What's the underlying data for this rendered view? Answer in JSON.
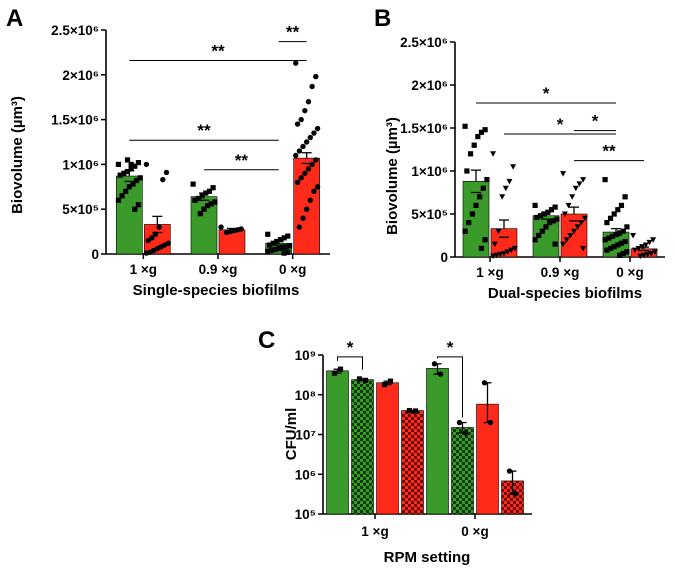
{
  "colors": {
    "green": "#3a9a2a",
    "red": "#ff2a1a",
    "black": "#000000"
  },
  "chart_data": [
    {
      "id": "A",
      "panel_label": "A",
      "type": "bar",
      "title": "",
      "xlabel": "Single-species biofilms",
      "ylabel": "Biovolume (µm³)",
      "ylim": [
        0,
        2500000
      ],
      "ytick_labels": [
        "0",
        "5×10⁵",
        "1×10⁶",
        "1.5×10⁶",
        "2×10⁶",
        "2.5×10⁶"
      ],
      "categories": [
        "1 ×g",
        "0.9 ×g",
        "0 ×g"
      ],
      "series": [
        {
          "name": "green",
          "values": [
            870000,
            640000,
            120000
          ],
          "errors": [
            60000,
            40000,
            20000
          ],
          "marker": "square",
          "points": [
            [
              1000000,
              1020000,
              980000,
              950000,
              1050000,
              900000,
              880000,
              850000,
              820000,
              780000,
              750000,
              700000,
              650000,
              600000,
              550000,
              500000,
              1000000,
              920000
            ],
            [
              780000,
              740000,
              700000,
              680000,
              650000,
              620000,
              600000,
              580000,
              560000,
              540000,
              500000,
              450000
            ],
            [
              220000,
              200000,
              180000,
              160000,
              140000,
              120000,
              100000,
              90000,
              80000,
              70000,
              60000,
              50000,
              40000,
              30000,
              20000,
              10000
            ]
          ]
        },
        {
          "name": "red",
          "values": [
            330000,
            270000,
            1070000
          ],
          "errors": [
            90000,
            15000,
            60000
          ],
          "marker": "circle",
          "points": [
            [
              1000000,
              910000,
              830000,
              300000,
              220000,
              180000,
              150000,
              120000,
              100000,
              80000,
              60000,
              40000,
              20000,
              10000
            ],
            [
              300000,
              280000,
              270000,
              260000,
              250000,
              240000
            ],
            [
              2130000,
              1980000,
              1870000,
              1700000,
              1600000,
              1500000,
              1450000,
              1400000,
              1350000,
              1300000,
              1250000,
              1200000,
              1150000,
              1100000,
              1050000,
              1000000,
              950000,
              900000,
              850000,
              800000,
              750000,
              700000,
              600000,
              500000,
              400000,
              300000
            ]
          ]
        }
      ],
      "significance": [
        {
          "label": "**",
          "from": [
            2,
            0
          ],
          "to": [
            2,
            1
          ],
          "y": 2370000
        },
        {
          "label": "**",
          "from": [
            0,
            0
          ],
          "to": [
            2,
            1
          ],
          "y": 2160000
        },
        {
          "label": "**",
          "from": [
            0,
            0
          ],
          "to": [
            2,
            0
          ],
          "y": 1270000
        },
        {
          "label": "**",
          "from": [
            1,
            0
          ],
          "to": [
            2,
            0
          ],
          "y": 940000
        }
      ]
    },
    {
      "id": "B",
      "panel_label": "B",
      "type": "bar",
      "title": "",
      "xlabel": "Dual-species biofilms",
      "ylabel": "Biovolume (µm³)",
      "ylim": [
        0,
        2500000
      ],
      "ytick_labels": [
        "0",
        "5×10⁵",
        "1×10⁶",
        "1.5×10⁶",
        "2×10⁶",
        "2.5×10⁶"
      ],
      "categories": [
        "1 ×g",
        "0.9 ×g",
        "0 ×g"
      ],
      "series": [
        {
          "name": "green",
          "values": [
            880000,
            480000,
            290000
          ],
          "errors": [
            130000,
            40000,
            40000
          ],
          "marker": "square",
          "points": [
            [
              1520000,
              1480000,
              1450000,
              1400000,
              1300000,
              1200000,
              1000000,
              900000,
              800000,
              700000,
              600000,
              500000,
              400000,
              300000,
              200000,
              100000
            ],
            [
              600000,
              580000,
              550000,
              520000,
              500000,
              480000,
              460000,
              440000,
              420000,
              400000,
              350000,
              300000,
              250000,
              200000,
              150000
            ],
            [
              900000,
              700000,
              600000,
              550000,
              500000,
              450000,
              400000,
              350000,
              300000,
              280000,
              260000,
              240000,
              220000,
              200000,
              180000,
              160000,
              140000,
              120000,
              100000,
              80000,
              60000,
              40000,
              20000
            ]
          ]
        },
        {
          "name": "red",
          "values": [
            330000,
            500000,
            95000
          ],
          "errors": [
            100000,
            80000,
            20000
          ],
          "marker": "triangle",
          "points": [
            [
              1200000,
              1050000,
              880000,
              800000,
              700000,
              300000,
              150000,
              100000,
              80000,
              60000,
              40000,
              30000,
              20000,
              10000
            ],
            [
              970000,
              900000,
              850000,
              800000,
              700000,
              600000,
              500000,
              450000,
              400000,
              350000,
              300000,
              250000,
              200000,
              150000,
              100000
            ],
            [
              250000,
              200000,
              170000,
              140000,
              120000,
              100000,
              80000,
              60000,
              40000,
              30000,
              20000,
              10000
            ]
          ]
        }
      ],
      "significance": [
        {
          "label": "*",
          "from": [
            0,
            0
          ],
          "to": [
            2,
            0
          ],
          "y": 1790000
        },
        {
          "label": "*",
          "from": [
            0,
            1
          ],
          "to": [
            2,
            0
          ],
          "y": 1430000
        },
        {
          "label": "*",
          "from": [
            1,
            1
          ],
          "to": [
            2,
            0
          ],
          "y": 1470000
        },
        {
          "label": "**",
          "from": [
            1,
            1
          ],
          "to": [
            2,
            1
          ],
          "y": 1120000
        }
      ]
    },
    {
      "id": "C",
      "panel_label": "C",
      "type": "bar",
      "title": "",
      "xlabel": "RPM setting",
      "ylabel": "CFU/ml",
      "yscale": "log",
      "ylim": [
        100000,
        1000000000
      ],
      "ytick_labels": [
        "10⁵",
        "10⁶",
        "10⁷",
        "10⁸",
        "10⁹"
      ],
      "categories": [
        "1 ×g",
        "0 ×g"
      ],
      "series": [
        {
          "name": "green solid",
          "pattern": "solid",
          "color": "green",
          "values": [
            400000000,
            460000000
          ],
          "points": [
            [
              350000000,
              440000000
            ],
            [
              600000000,
              330000000
            ]
          ]
        },
        {
          "name": "green checkered",
          "pattern": "checker",
          "color": "green",
          "values": [
            240000000,
            15000000
          ],
          "points": [
            [
              250000000,
              230000000
            ],
            [
              20000000,
              11000000
            ]
          ]
        },
        {
          "name": "red solid",
          "pattern": "solid",
          "color": "red",
          "values": [
            200000000,
            58000000
          ],
          "points": [
            [
              180000000,
              220000000
            ],
            [
              200000000,
              20000000
            ]
          ]
        },
        {
          "name": "red checkered",
          "pattern": "checker",
          "color": "red",
          "values": [
            40000000,
            680000
          ],
          "points": [
            [
              40000000,
              39000000
            ],
            [
              1200000,
              320000
            ]
          ]
        }
      ],
      "significance": [
        {
          "label": "*",
          "group": 0,
          "from": 0,
          "to": 1,
          "y": 900000000
        },
        {
          "label": "*",
          "group": 1,
          "from": 0,
          "to": 1,
          "y": 900000000
        }
      ]
    }
  ]
}
